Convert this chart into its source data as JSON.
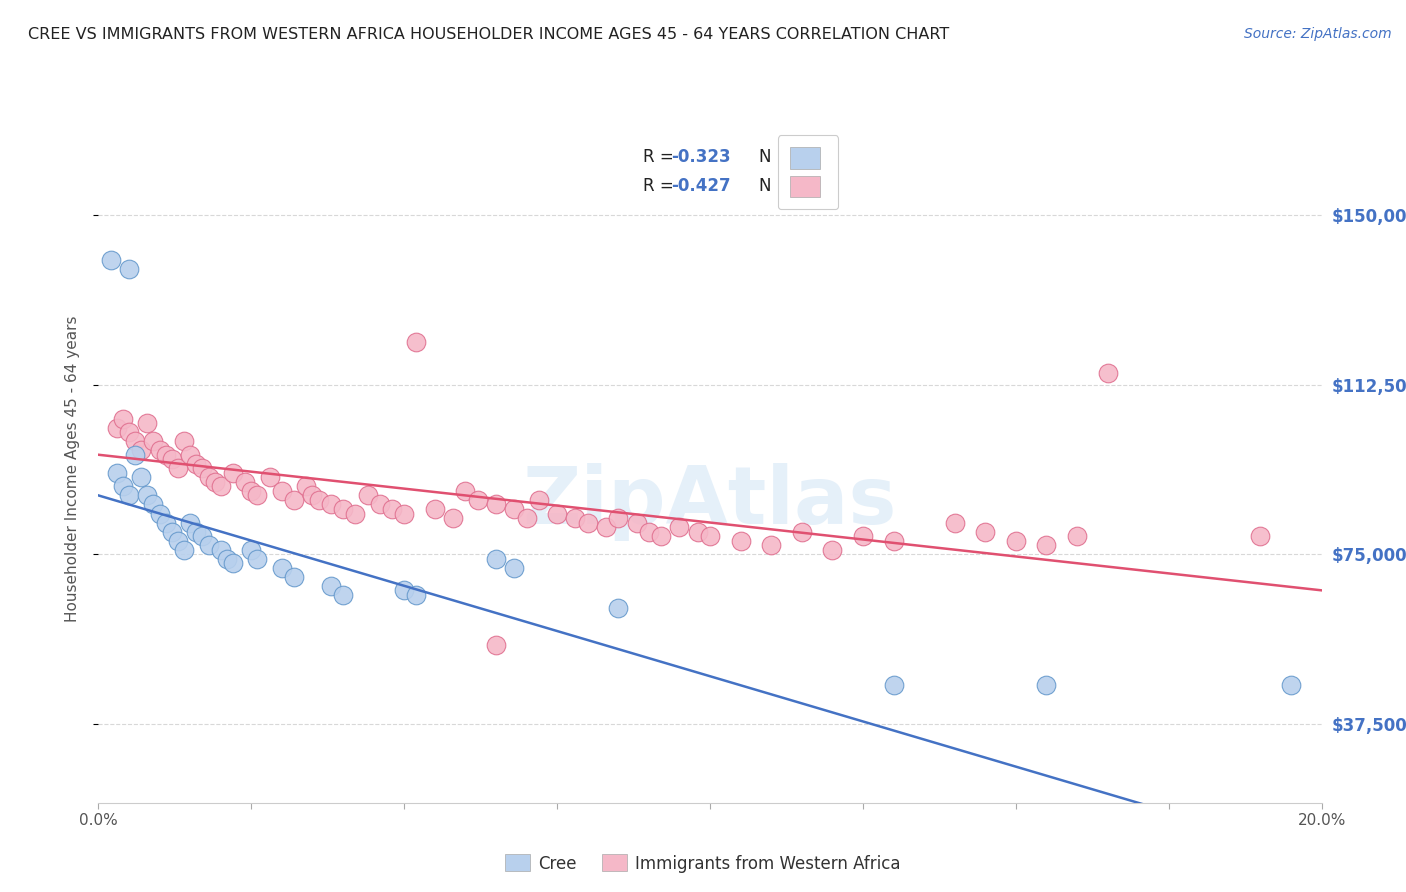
{
  "title": "CREE VS IMMIGRANTS FROM WESTERN AFRICA HOUSEHOLDER INCOME AGES 45 - 64 YEARS CORRELATION CHART",
  "source": "Source: ZipAtlas.com",
  "ylabel": "Householder Income Ages 45 - 64 years",
  "xlim": [
    0.0,
    0.2
  ],
  "ylim": [
    20000,
    168000
  ],
  "yticks": [
    37500,
    75000,
    112500,
    150000
  ],
  "ytick_labels": [
    "$37,500",
    "$75,000",
    "$112,500",
    "$150,000"
  ],
  "background_color": "#ffffff",
  "grid_color": "#d8d8d8",
  "cree_color": "#b8d0ed",
  "cree_edge_color": "#6699cc",
  "wa_color": "#f5b8c8",
  "wa_edge_color": "#e07090",
  "cree_line_color": "#4472c4",
  "wa_line_color": "#e05070",
  "legend_blue_color": "#4472c4",
  "title_color": "#222222",
  "source_color": "#4472c4",
  "cree_points": [
    [
      0.002,
      140000
    ],
    [
      0.005,
      138000
    ],
    [
      0.003,
      93000
    ],
    [
      0.004,
      90000
    ],
    [
      0.005,
      88000
    ],
    [
      0.006,
      97000
    ],
    [
      0.007,
      92000
    ],
    [
      0.008,
      88000
    ],
    [
      0.009,
      86000
    ],
    [
      0.01,
      84000
    ],
    [
      0.011,
      82000
    ],
    [
      0.012,
      80000
    ],
    [
      0.013,
      78000
    ],
    [
      0.014,
      76000
    ],
    [
      0.015,
      82000
    ],
    [
      0.016,
      80000
    ],
    [
      0.017,
      79000
    ],
    [
      0.018,
      77000
    ],
    [
      0.02,
      76000
    ],
    [
      0.021,
      74000
    ],
    [
      0.022,
      73000
    ],
    [
      0.025,
      76000
    ],
    [
      0.026,
      74000
    ],
    [
      0.03,
      72000
    ],
    [
      0.032,
      70000
    ],
    [
      0.038,
      68000
    ],
    [
      0.04,
      66000
    ],
    [
      0.05,
      67000
    ],
    [
      0.052,
      66000
    ],
    [
      0.065,
      74000
    ],
    [
      0.068,
      72000
    ],
    [
      0.085,
      63000
    ],
    [
      0.13,
      46000
    ],
    [
      0.155,
      46000
    ],
    [
      0.195,
      46000
    ]
  ],
  "wa_points": [
    [
      0.003,
      103000
    ],
    [
      0.004,
      105000
    ],
    [
      0.005,
      102000
    ],
    [
      0.006,
      100000
    ],
    [
      0.007,
      98000
    ],
    [
      0.008,
      104000
    ],
    [
      0.009,
      100000
    ],
    [
      0.01,
      98000
    ],
    [
      0.011,
      97000
    ],
    [
      0.012,
      96000
    ],
    [
      0.013,
      94000
    ],
    [
      0.014,
      100000
    ],
    [
      0.015,
      97000
    ],
    [
      0.016,
      95000
    ],
    [
      0.017,
      94000
    ],
    [
      0.018,
      92000
    ],
    [
      0.019,
      91000
    ],
    [
      0.02,
      90000
    ],
    [
      0.022,
      93000
    ],
    [
      0.024,
      91000
    ],
    [
      0.025,
      89000
    ],
    [
      0.026,
      88000
    ],
    [
      0.028,
      92000
    ],
    [
      0.03,
      89000
    ],
    [
      0.032,
      87000
    ],
    [
      0.034,
      90000
    ],
    [
      0.035,
      88000
    ],
    [
      0.036,
      87000
    ],
    [
      0.038,
      86000
    ],
    [
      0.04,
      85000
    ],
    [
      0.042,
      84000
    ],
    [
      0.044,
      88000
    ],
    [
      0.046,
      86000
    ],
    [
      0.048,
      85000
    ],
    [
      0.05,
      84000
    ],
    [
      0.052,
      122000
    ],
    [
      0.055,
      85000
    ],
    [
      0.058,
      83000
    ],
    [
      0.06,
      89000
    ],
    [
      0.062,
      87000
    ],
    [
      0.065,
      86000
    ],
    [
      0.068,
      85000
    ],
    [
      0.07,
      83000
    ],
    [
      0.072,
      87000
    ],
    [
      0.075,
      84000
    ],
    [
      0.078,
      83000
    ],
    [
      0.08,
      82000
    ],
    [
      0.083,
      81000
    ],
    [
      0.085,
      83000
    ],
    [
      0.088,
      82000
    ],
    [
      0.09,
      80000
    ],
    [
      0.092,
      79000
    ],
    [
      0.095,
      81000
    ],
    [
      0.098,
      80000
    ],
    [
      0.1,
      79000
    ],
    [
      0.105,
      78000
    ],
    [
      0.11,
      77000
    ],
    [
      0.115,
      80000
    ],
    [
      0.12,
      76000
    ],
    [
      0.125,
      79000
    ],
    [
      0.13,
      78000
    ],
    [
      0.065,
      55000
    ],
    [
      0.14,
      82000
    ],
    [
      0.145,
      80000
    ],
    [
      0.15,
      78000
    ],
    [
      0.155,
      77000
    ],
    [
      0.165,
      115000
    ],
    [
      0.19,
      79000
    ],
    [
      0.16,
      79000
    ]
  ],
  "cree_regr_slope": -400000,
  "cree_regr_intercept": 88000,
  "wa_regr_slope": -150000,
  "wa_regr_intercept": 97000
}
